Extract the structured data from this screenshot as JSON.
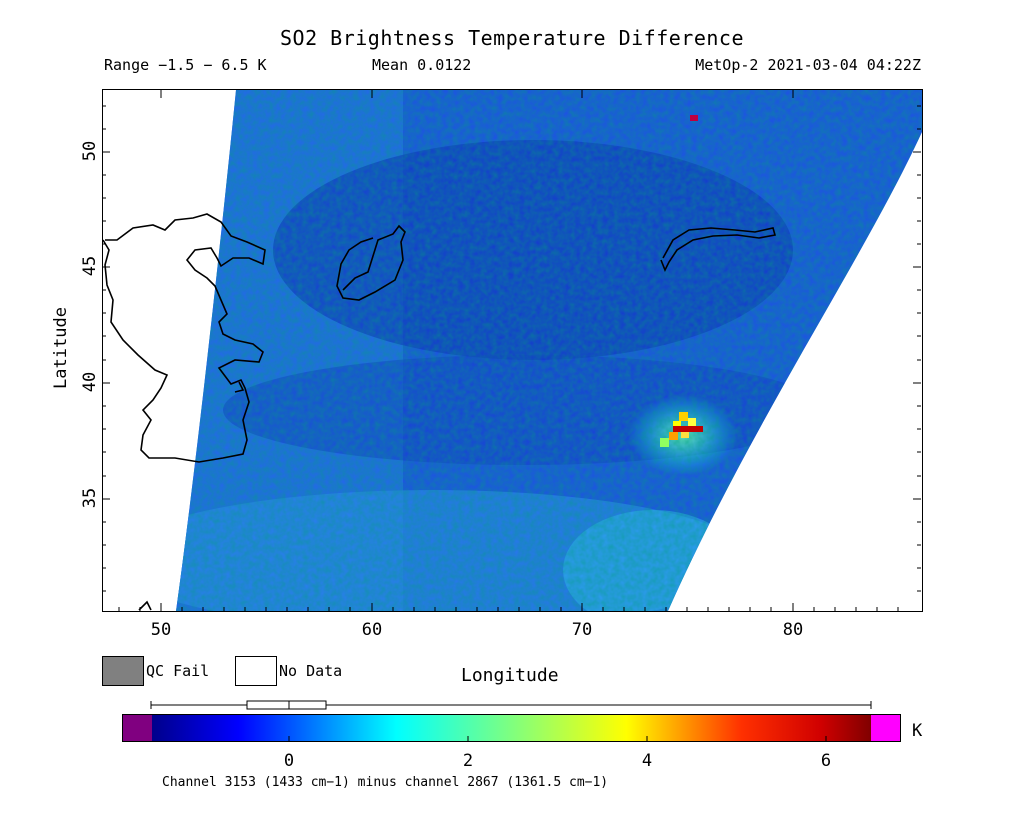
{
  "header": {
    "title": "SO2 Brightness Temperature Difference",
    "range": "Range −1.5 − 6.5 K",
    "mean": "Mean 0.0122",
    "satellite": "MetOp-2 2021-03-04 04:22Z"
  },
  "axes": {
    "xlabel": "Longitude",
    "ylabel": "Latitude",
    "x_ticks": [
      "50",
      "60",
      "70",
      "80"
    ],
    "y_ticks": [
      "50",
      "45",
      "40",
      "35"
    ],
    "xlim": [
      47,
      86
    ],
    "ylim": [
      30.2,
      52.6
    ]
  },
  "legend": {
    "qc_fail": "QC Fail",
    "no_data": "No Data",
    "qc_fail_color": "#808080",
    "no_data_color": "#ffffff"
  },
  "colorbar": {
    "unit": "K",
    "ticks": [
      "0",
      "2",
      "4",
      "6"
    ],
    "range": [
      -1.5,
      6.5
    ],
    "underflow_color": "#800080",
    "overflow_color": "#ff00ff",
    "colormap": [
      "#00008b",
      "#0000ff",
      "#00ffff",
      "#7fff7f",
      "#ffff00",
      "#ff7f00",
      "#ff0000",
      "#800000"
    ],
    "footnote": "Channel 3153 (1433 cm−1) minus channel 2867 (1361.5 cm−1)"
  },
  "map_features": {
    "so2_plume_center": {
      "lon": 75.0,
      "lat": 38.1,
      "peak_value_K": 6.4
    },
    "field_background_color": "#1f4fe8"
  }
}
